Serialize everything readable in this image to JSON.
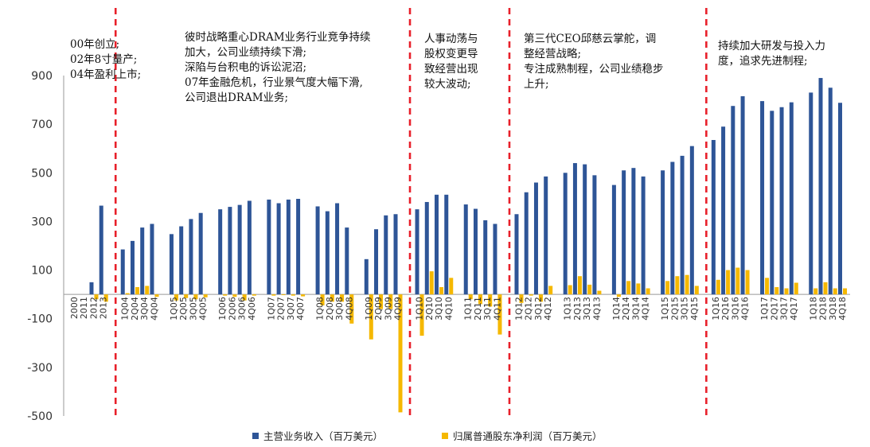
{
  "chart_data": {
    "type": "bar",
    "categories": [
      "2000",
      "2011",
      "2012",
      "2013",
      "1Q04",
      "2Q04",
      "3Q04",
      "4Q04",
      "1Q05",
      "2Q05",
      "3Q05",
      "4Q05",
      "1Q06",
      "2Q06",
      "3Q06",
      "4Q06",
      "1Q07",
      "2Q07",
      "3Q07",
      "4Q07",
      "1Q08",
      "2Q08",
      "3Q08",
      "4Q08",
      "1Q09",
      "2Q09",
      "3Q09",
      "4Q09",
      "1Q10",
      "2Q10",
      "3Q10",
      "4Q10",
      "1Q11",
      "2Q11",
      "3Q11",
      "4Q11",
      "1Q12",
      "2Q12",
      "3Q12",
      "4Q12",
      "1Q13",
      "2Q13",
      "3Q13",
      "4Q13",
      "1Q14",
      "2Q14",
      "3Q14",
      "4Q14",
      "1Q15",
      "2Q15",
      "3Q15",
      "4Q15",
      "1Q16",
      "2Q16",
      "3Q16",
      "4Q16",
      "1Q17",
      "2Q17",
      "3Q17",
      "4Q17",
      "1Q18",
      "2Q18",
      "3Q18",
      "4Q18"
    ],
    "series": [
      {
        "name": "主营业务收入（百万美元）",
        "color": "#2E5597",
        "values": [
          0,
          0,
          50,
          365,
          185,
          220,
          275,
          290,
          248,
          280,
          310,
          335,
          350,
          360,
          368,
          385,
          390,
          375,
          390,
          393,
          362,
          342,
          375,
          275,
          145,
          268,
          325,
          330,
          350,
          380,
          410,
          410,
          370,
          352,
          305,
          290,
          330,
          420,
          460,
          485,
          500,
          540,
          535,
          490,
          450,
          510,
          520,
          485,
          510,
          545,
          570,
          610,
          635,
          690,
          775,
          815,
          795,
          755,
          770,
          790,
          830,
          890,
          850,
          788
        ]
      },
      {
        "name": "归属普通股东净利润（百万美元）",
        "color": "#F5B800",
        "values": [
          0,
          0,
          -20,
          -30,
          5,
          30,
          35,
          -10,
          -25,
          -15,
          -20,
          -12,
          -5,
          -10,
          -25,
          -5,
          -5,
          -3,
          -5,
          -8,
          -45,
          -30,
          -30,
          -120,
          -185,
          -60,
          -60,
          -485,
          -170,
          95,
          30,
          68,
          -20,
          -40,
          -50,
          -165,
          -35,
          -5,
          -30,
          35,
          38,
          75,
          40,
          15,
          -10,
          55,
          45,
          25,
          55,
          75,
          80,
          35,
          60,
          100,
          110,
          100,
          68,
          30,
          25,
          48,
          25,
          50,
          25,
          25
        ]
      }
    ],
    "ylim": [
      -500,
      900
    ],
    "yticks": [
      -500,
      -300,
      -100,
      100,
      300,
      500,
      700,
      900
    ],
    "dividers_after": [
      "2013",
      "4Q09",
      "4Q11",
      "4Q15"
    ],
    "annotations": [
      "00年创立;\n02年8寸量产;\n04年盈利上市;",
      "彼时战略重心DRAM业务行业竞争持续\n加大，公司业绩持续下滑;\n深陷与台积电的诉讼泥沼;\n07年金融危机，行业景气度大幅下滑,\n公司退出DRAM业务;",
      "人事动荡与\n股权变更导\n致经营出现\n较大波动;",
      "第三代CEO邱慈云掌舵，调\n整经营战略;\n专注成熟制程，公司业绩稳步\n上升;",
      "持续加大研发与投入力\n度，追求先进制程;"
    ],
    "legend": [
      "主营业务收入（百万美元）",
      "归属普通股东净利润（百万美元）"
    ],
    "divider_color": "#E8202A",
    "grid": false
  }
}
